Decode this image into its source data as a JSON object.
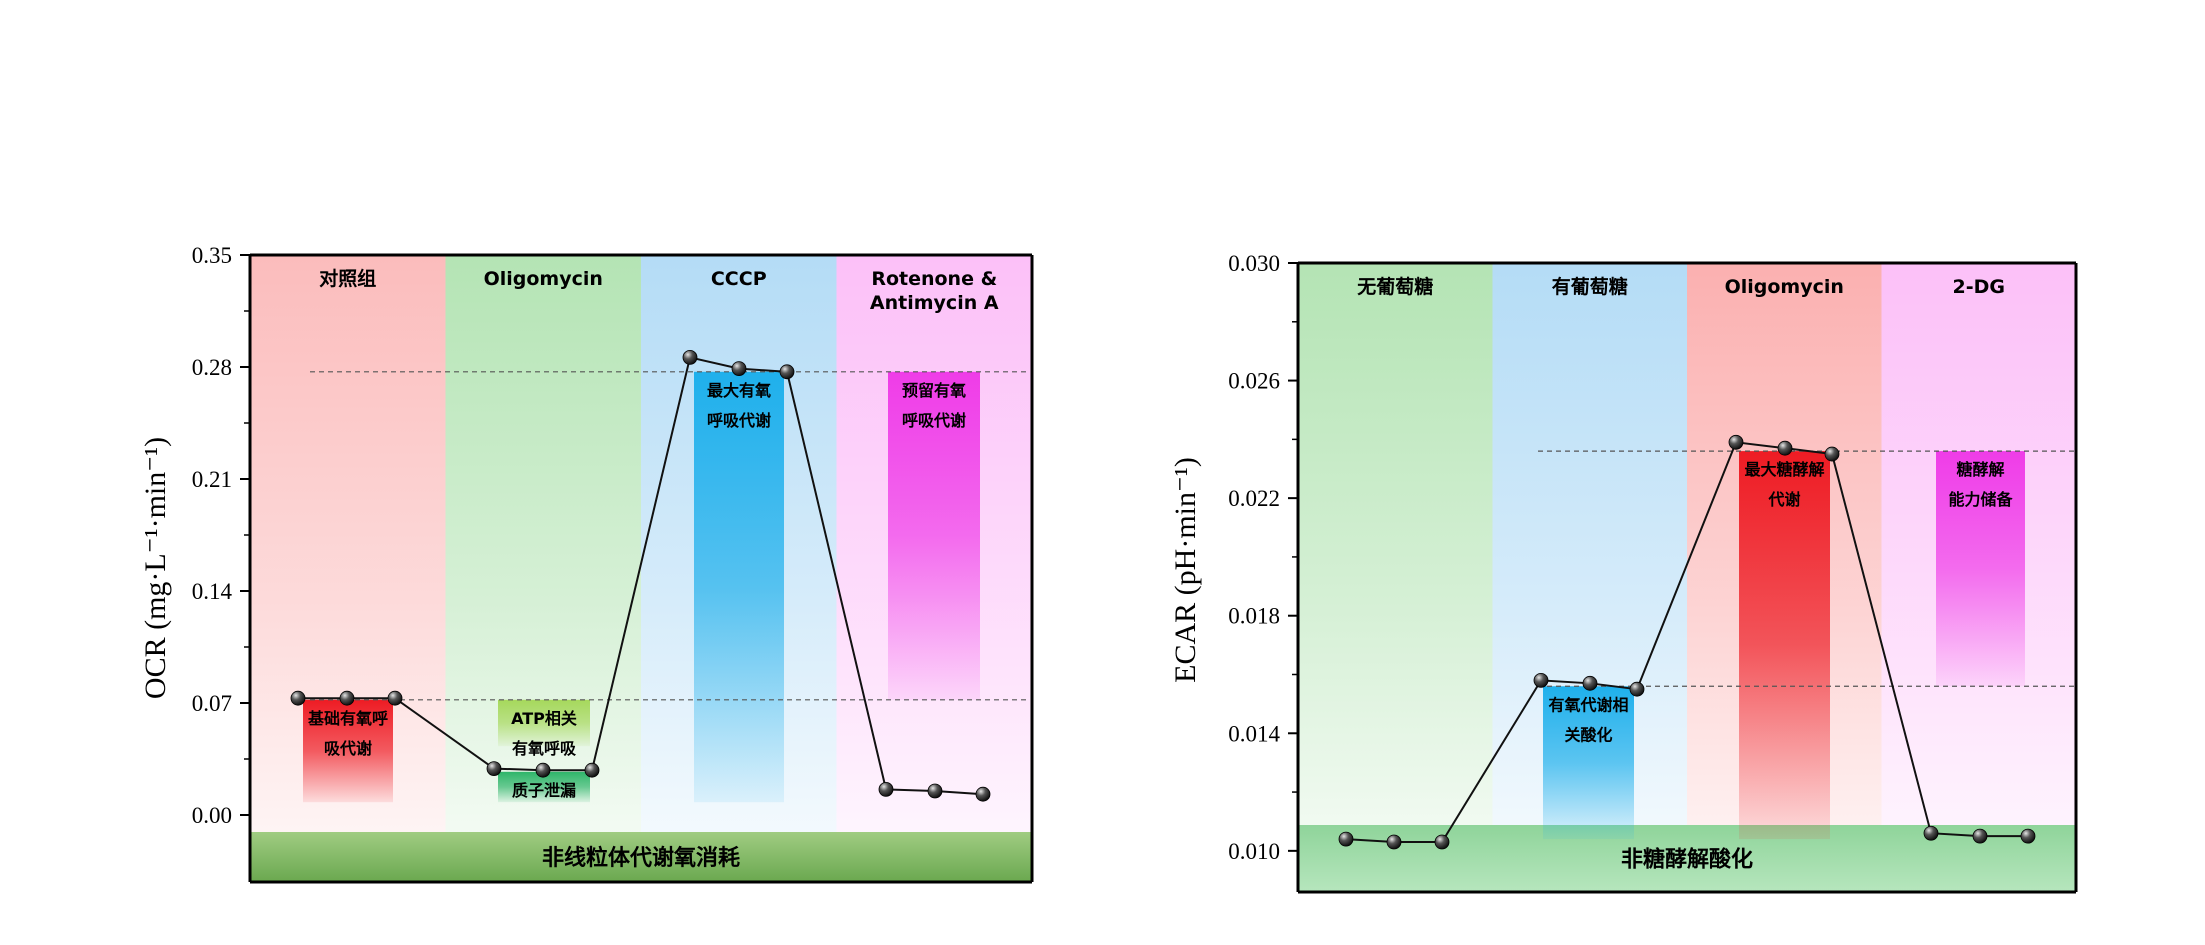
{
  "chart_data": [
    {
      "type": "line",
      "ylabel": "OCR (mg·L⁻¹·min⁻¹)",
      "ylim": [
        -0.02,
        0.35
      ],
      "yticks": [
        "0.00",
        "0.07",
        "0.14",
        "0.21",
        "0.28",
        "0.35"
      ],
      "ytick_values": [
        0.0,
        0.07,
        0.14,
        0.21,
        0.28,
        0.35
      ],
      "phases": [
        {
          "name": "对照组",
          "color": "#fbbcbc"
        },
        {
          "name": "Oligomycin",
          "color": "#b4e4b4"
        },
        {
          "name": "CCCP",
          "color": "#b4dcf6"
        },
        {
          "name": "Rotenone & Antimycin A",
          "name_lines": [
            "Rotenone &",
            "Antimycin A"
          ],
          "color": "#fcc0f8"
        }
      ],
      "series": [
        {
          "values": [
            0.073,
            0.073,
            0.073,
            0.029,
            0.028,
            0.028,
            0.286,
            0.279,
            0.277,
            0.016,
            0.015,
            0.013
          ]
        }
      ],
      "annotations": [
        {
          "text": "基础有氧呼吸代谢",
          "lines": [
            "基础有氧呼",
            "吸代谢"
          ],
          "range": [
            0.008,
            0.072
          ],
          "color": "#ee1c24"
        },
        {
          "text": "ATP相关有氧呼吸",
          "lines": [
            "ATP相关",
            "有氧呼吸"
          ],
          "range": [
            0.043,
            0.072
          ],
          "color": "#a6d85c"
        },
        {
          "text": "质子泄漏",
          "lines": [
            "质子泄漏"
          ],
          "range": [
            0.008,
            0.027
          ],
          "color": "#2fb56a"
        },
        {
          "text": "最大有氧呼吸代谢",
          "lines": [
            "最大有氧",
            "呼吸代谢"
          ],
          "range": [
            0.008,
            0.277
          ],
          "color": "#1fb0ec"
        },
        {
          "text": "预留有氧呼吸代谢",
          "lines": [
            "预留有氧",
            "呼吸代谢"
          ],
          "range": [
            0.072,
            0.277
          ],
          "color": "#ef3ce8"
        }
      ],
      "baseline_label": "非线粒体代谢氧消耗",
      "reference_lines": [
        0.072,
        0.277
      ]
    },
    {
      "type": "line",
      "ylabel": "ECAR (pH·min⁻¹)",
      "ylim": [
        0.0086,
        0.03
      ],
      "yticks": [
        "0.010",
        "0.014",
        "0.018",
        "0.022",
        "0.026",
        "0.030"
      ],
      "ytick_values": [
        0.01,
        0.014,
        0.018,
        0.022,
        0.026,
        0.03
      ],
      "phases": [
        {
          "name": "无葡萄糖",
          "color": "#b4e4b4"
        },
        {
          "name": "有葡萄糖",
          "color": "#b4dcf6"
        },
        {
          "name": "Oligomycin",
          "color": "#fbb0b0"
        },
        {
          "name": "2-DG",
          "color": "#fcc0f8"
        }
      ],
      "series": [
        {
          "values": [
            0.0104,
            0.0103,
            0.0103,
            0.0158,
            0.0157,
            0.0155,
            0.0239,
            0.0237,
            0.0235,
            0.0106,
            0.0105,
            0.0105
          ]
        }
      ],
      "annotations": [
        {
          "text": "有氧代谢相关酸化",
          "lines": [
            "有氧代谢相",
            "关酸化"
          ],
          "range": [
            0.0104,
            0.0156
          ],
          "color": "#1fb0ec"
        },
        {
          "text": "最大糖酵解代谢",
          "lines": [
            "最大糖酵解",
            "代谢"
          ],
          "range": [
            0.0104,
            0.0236
          ],
          "color": "#ee1c24"
        },
        {
          "text": "糖酵解能力储备",
          "lines": [
            "糖酵解",
            "能力储备"
          ],
          "range": [
            0.0156,
            0.0236
          ],
          "color": "#ef3ce8"
        }
      ],
      "baseline_label": "非糖酵解酸化",
      "reference_lines": [
        0.0156,
        0.0236
      ]
    }
  ]
}
